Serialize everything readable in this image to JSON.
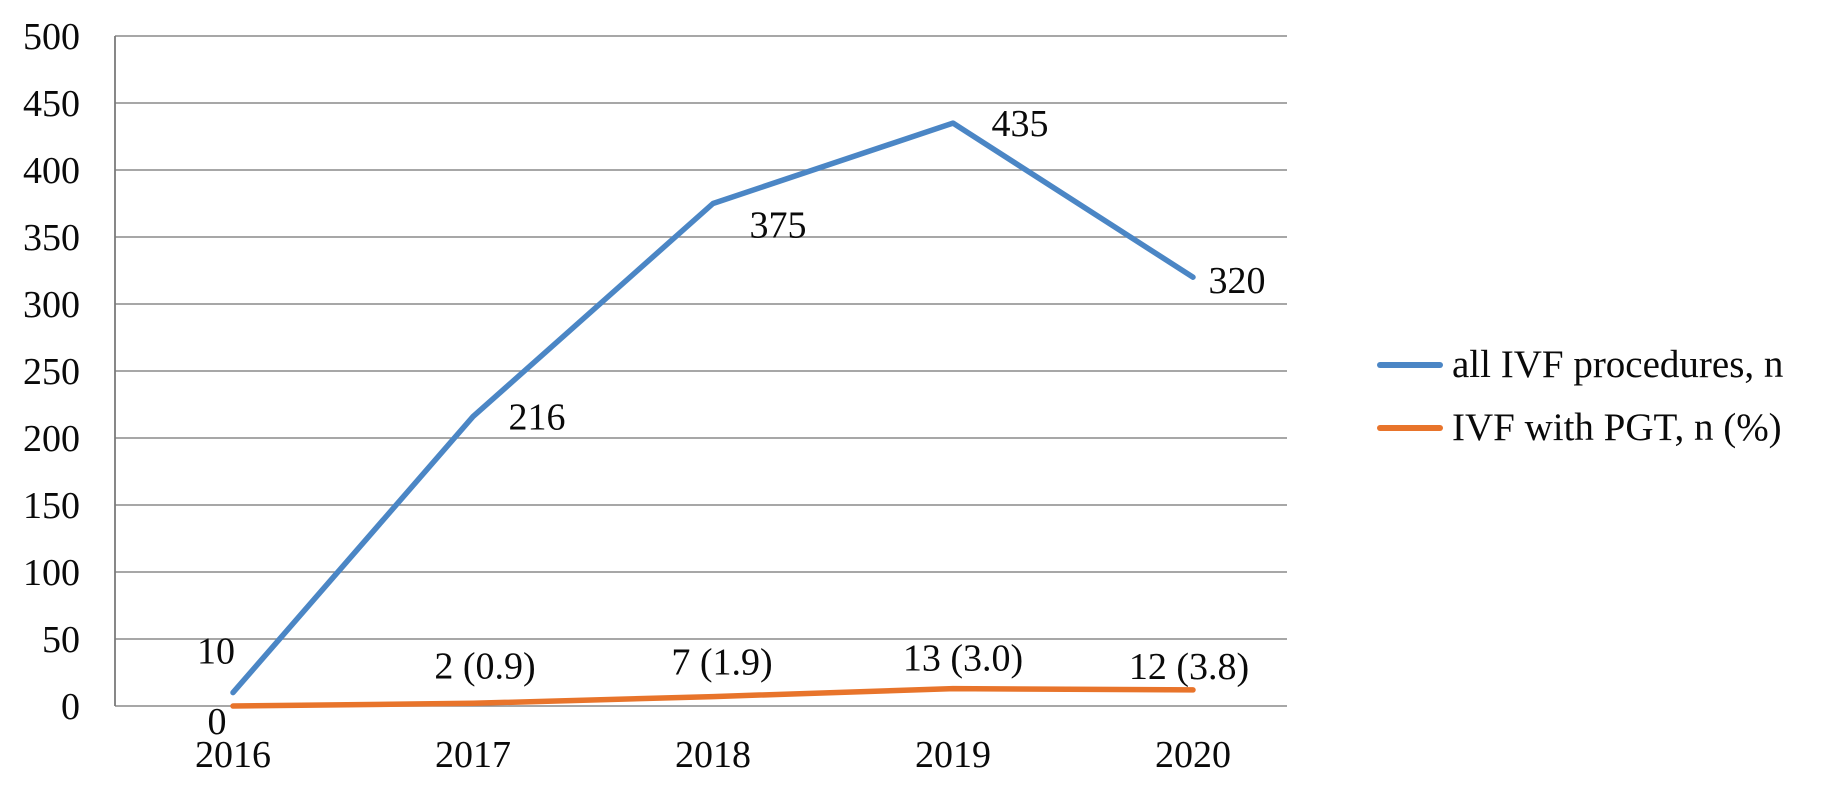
{
  "chart_data": {
    "type": "line",
    "title": "",
    "xlabel": "",
    "ylabel": "",
    "categories": [
      "2016",
      "2017",
      "2018",
      "2019",
      "2020"
    ],
    "series": [
      {
        "name": "all IVF procedures, n",
        "color": "#4b86c5",
        "values": [
          10,
          216,
          375,
          435,
          320
        ],
        "point_labels": [
          "10",
          "216",
          "375",
          "435",
          "320"
        ]
      },
      {
        "name": "IVF with PGT, n (%)",
        "color": "#e8742b",
        "values": [
          0,
          2,
          7,
          13,
          12
        ],
        "point_labels": [
          "0",
          "2 (0.9)",
          "7 (1.9)",
          "13 (3.0)",
          "12 (3.8)"
        ]
      }
    ],
    "ylim": [
      0,
      500
    ],
    "ytick_step": 50,
    "ytick_labels": [
      "0",
      "50",
      "100",
      "150",
      "200",
      "250",
      "300",
      "350",
      "400",
      "450",
      "500"
    ],
    "grid": "horizontal",
    "legend_position": "right"
  },
  "colors": {
    "gridline": "#8a8a8a",
    "axis_line": "#7a7a7a",
    "text": "#0a0a0a",
    "background": "#ffffff"
  }
}
